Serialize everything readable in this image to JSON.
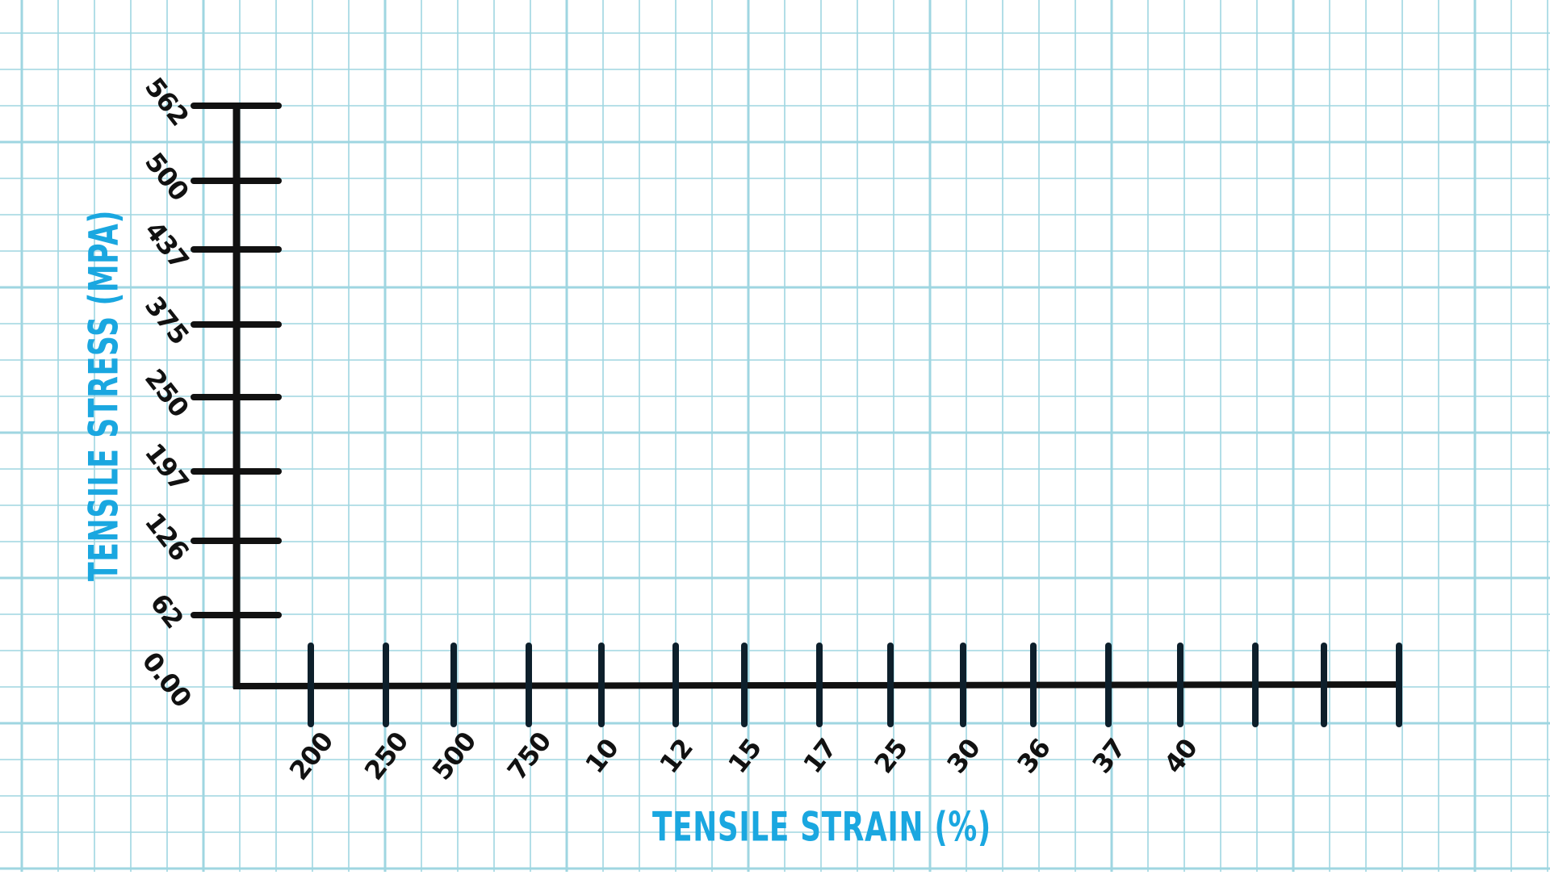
{
  "colors": {
    "grid": "#9fd6e1",
    "axis": "#111111",
    "tick": "#0d1f2b",
    "title": "#1aa7e0",
    "background": "#ffffff"
  },
  "chart_data": {
    "type": "line",
    "title": "",
    "xlabel": "TENSILE STRAIN (%)",
    "ylabel": "TENSILE STRESS (MPA)",
    "x_tick_labels": [
      "200",
      "250",
      "500",
      "750",
      "10",
      "12",
      "15",
      "17",
      "25",
      "30",
      "36",
      "37",
      "40",
      "",
      "",
      ""
    ],
    "y_tick_labels": [
      "0.00",
      "62",
      "126",
      "197",
      "250",
      "375",
      "437",
      "500",
      "562"
    ],
    "series": [],
    "grid": true,
    "legend": "none"
  }
}
